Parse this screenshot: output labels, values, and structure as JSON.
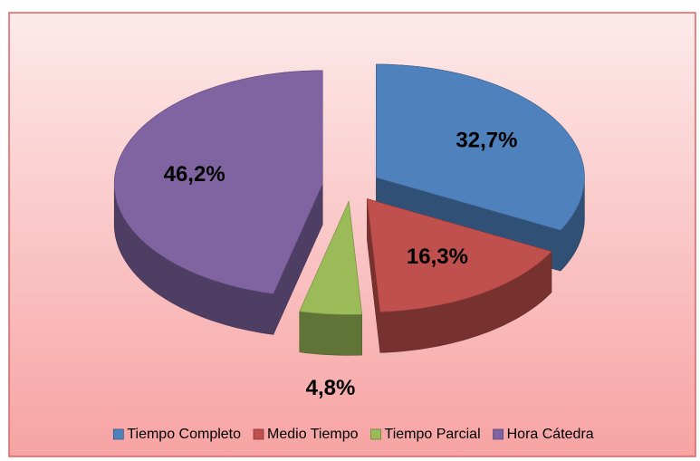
{
  "chart_data": {
    "type": "pie",
    "categories": [
      "Tiempo Completo",
      "Medio Tiempo",
      "Tiempo Parcial",
      "Hora Cátedra"
    ],
    "values": [
      32.7,
      16.3,
      4.8,
      46.2
    ],
    "value_labels": [
      "32,7%",
      "16,3%",
      "4,8%",
      "46,2%"
    ],
    "colors": [
      "#4f81bd",
      "#c0504d",
      "#9bbb59",
      "#8064a2"
    ],
    "legend": "bottom"
  }
}
